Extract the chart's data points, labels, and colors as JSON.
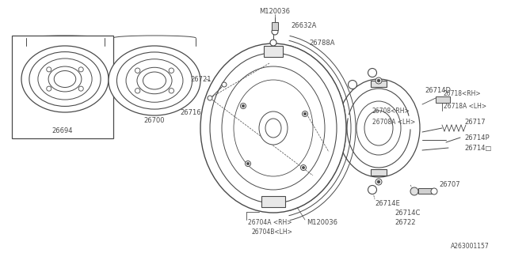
{
  "bg_color": "#ffffff",
  "line_color": "#4a4a4a",
  "text_color": "#4a4a4a",
  "diagram_id": "A263001157",
  "parts": {
    "M120036_top": "M120036",
    "26632A": "26632A",
    "26788A": "26788A",
    "26721": "26721",
    "26716": "26716",
    "26708RH": "26708<RH>",
    "26708ALH": "26708A <LH>",
    "26718RH": "26718<RH>",
    "26718ALH": "26718A <LH>",
    "26714D": "26714D",
    "26717": "26717",
    "26714P": "26714P",
    "26714Q": "26714□",
    "26704ARH": "26704A <RH>",
    "26704BLH": "26704B<LH>",
    "M120036_mid": "M120036",
    "26714E": "26714E",
    "26714C": "26714C",
    "26722": "26722",
    "26707": "26707",
    "26700": "26700",
    "26694": "26694"
  },
  "font_size": 6.0,
  "font_size_sm": 5.5
}
